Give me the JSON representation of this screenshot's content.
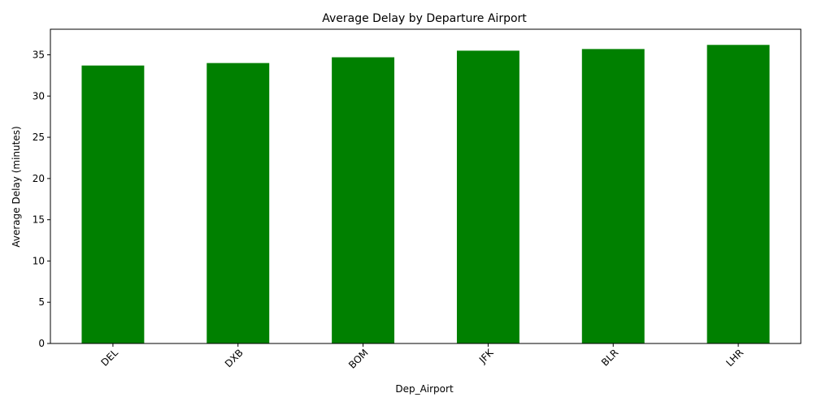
{
  "chart_data": {
    "type": "bar",
    "title": "Average Delay by Departure Airport",
    "xlabel": "Dep_Airport",
    "ylabel": "Average Delay (minutes)",
    "categories": [
      "DEL",
      "DXB",
      "BOM",
      "JFK",
      "BLR",
      "LHR"
    ],
    "values": [
      33.7,
      34.0,
      34.7,
      35.5,
      35.7,
      36.2
    ],
    "ylim": [
      0,
      38.1
    ],
    "yticks": [
      0,
      5,
      10,
      15,
      20,
      25,
      30,
      35
    ],
    "bar_color": "#008000",
    "grid": false,
    "legend": false
  }
}
